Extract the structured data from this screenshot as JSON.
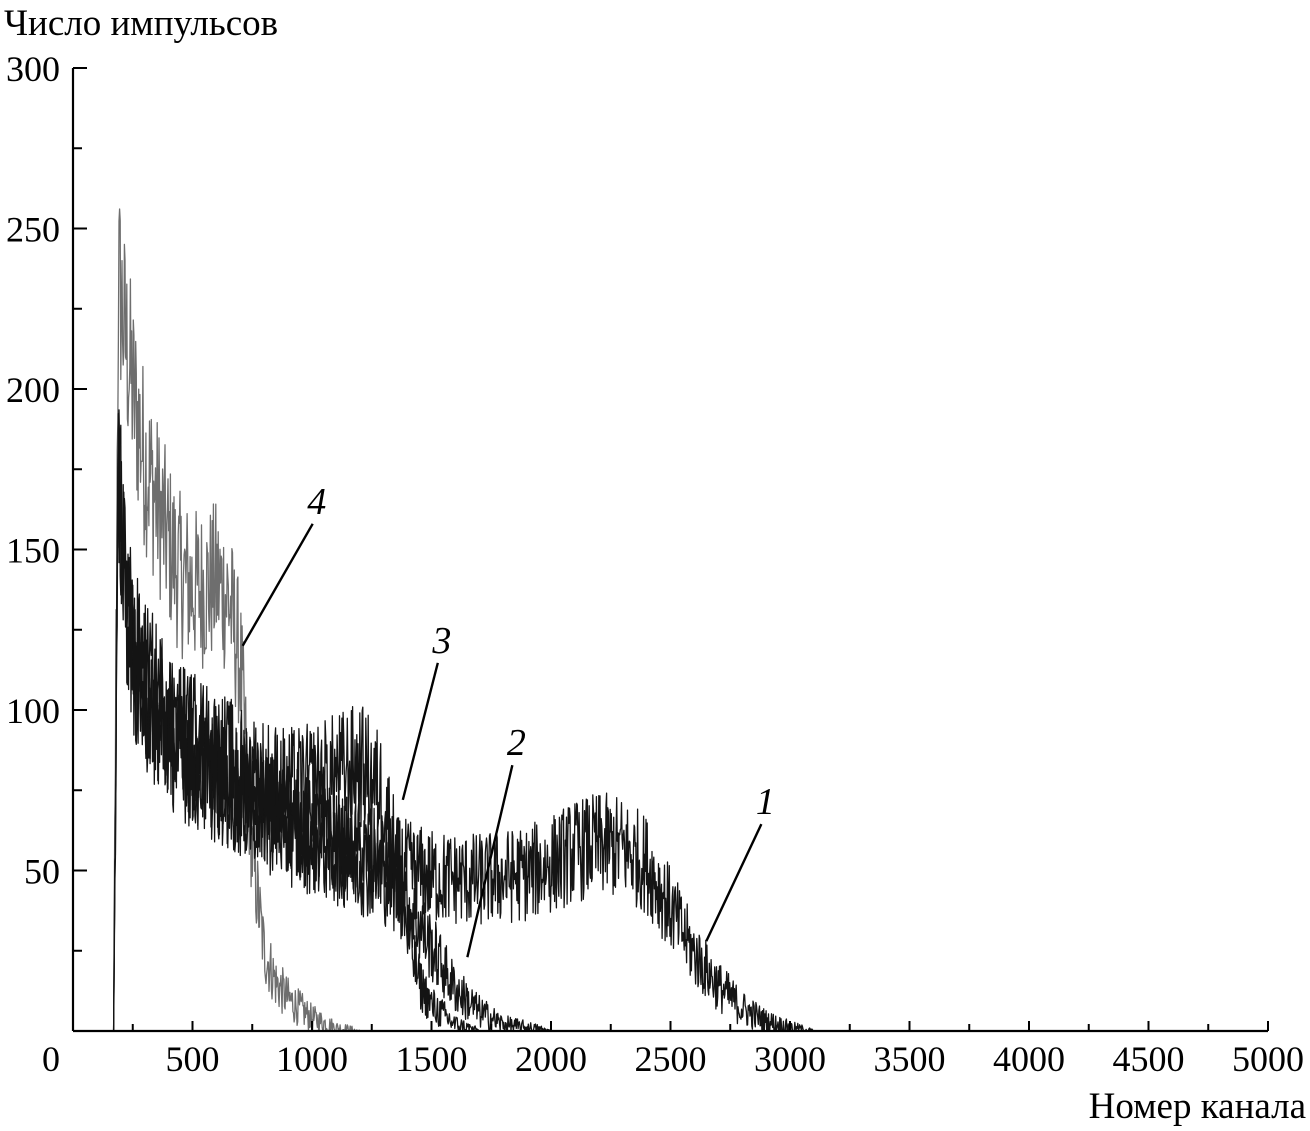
{
  "chart_data": {
    "type": "line",
    "title": "",
    "xlabel": "Номер канала",
    "ylabel": "Число импульсов",
    "xlim": [
      0,
      5000
    ],
    "ylim": [
      0,
      300
    ],
    "x_ticks": [
      0,
      500,
      1000,
      1500,
      2000,
      2500,
      3000,
      3500,
      4000,
      4500,
      5000
    ],
    "y_ticks": [
      50,
      100,
      150,
      200,
      250,
      300
    ],
    "grid": false,
    "legend": "none",
    "series": [
      {
        "name": "1",
        "color": "#141414",
        "x": [
          150,
          170,
          190,
          220,
          260,
          300,
          400,
          500,
          700,
          900,
          1100,
          1300,
          1500,
          1700,
          1900,
          2000,
          2100,
          2200,
          2300,
          2400,
          2500,
          2600,
          2700,
          2800,
          2900,
          3000,
          3100,
          3500,
          4000,
          5000
        ],
        "y": [
          0,
          0,
          175,
          140,
          115,
          105,
          92,
          85,
          74,
          66,
          58,
          53,
          48,
          47,
          49,
          52,
          56,
          58,
          57,
          52,
          38,
          24,
          14,
          7,
          3,
          1,
          0,
          0,
          0,
          0
        ]
      },
      {
        "name": "2",
        "color": "#141414",
        "x": [
          150,
          170,
          190,
          220,
          260,
          300,
          400,
          500,
          700,
          900,
          1100,
          1300,
          1400,
          1500,
          1600,
          1700,
          1800,
          1900,
          2000,
          2200,
          5000
        ],
        "y": [
          0,
          0,
          165,
          135,
          112,
          102,
          90,
          82,
          72,
          62,
          55,
          48,
          40,
          26,
          13,
          6,
          2,
          1,
          0,
          0,
          0
        ]
      },
      {
        "name": "3",
        "color": "#141414",
        "x": [
          150,
          170,
          190,
          220,
          260,
          300,
          400,
          500,
          700,
          900,
          1000,
          1100,
          1200,
          1300,
          1350,
          1400,
          1450,
          1500,
          1600,
          1700,
          1800,
          5000
        ],
        "y": [
          0,
          0,
          170,
          140,
          120,
          112,
          100,
          92,
          82,
          76,
          77,
          80,
          83,
          74,
          55,
          30,
          15,
          8,
          2,
          0,
          0,
          0
        ]
      },
      {
        "name": "4",
        "color": "#6e6e6e",
        "x": [
          150,
          170,
          190,
          220,
          260,
          300,
          350,
          400,
          450,
          500,
          550,
          600,
          650,
          700,
          750,
          800,
          850,
          900,
          1000,
          1100,
          1200,
          5000
        ],
        "y": [
          0,
          0,
          235,
          215,
          195,
          178,
          165,
          152,
          142,
          138,
          138,
          140,
          135,
          115,
          55,
          25,
          15,
          10,
          4,
          1,
          0,
          0
        ]
      }
    ],
    "annotations": [
      {
        "text": "1",
        "target_x": 2650,
        "target_y": 28
      },
      {
        "text": "2",
        "target_x": 1650,
        "target_y": 23
      },
      {
        "text": "3",
        "target_x": 1380,
        "target_y": 72
      },
      {
        "text": "4",
        "target_x": 710,
        "target_y": 120
      }
    ]
  }
}
